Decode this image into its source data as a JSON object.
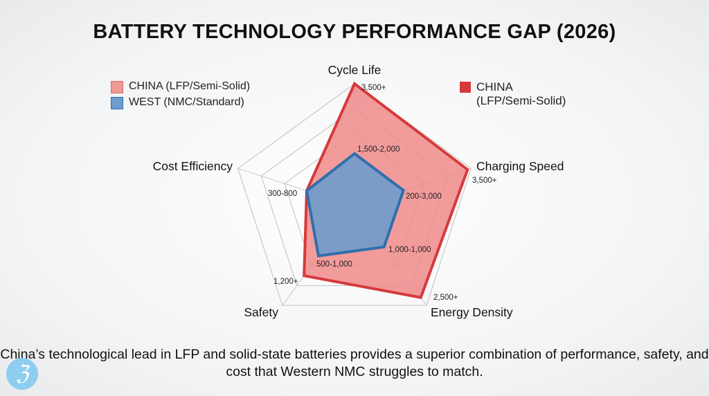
{
  "chart_data": {
    "type": "radar",
    "title": "BATTERY TECHNOLOGY PERFORMANCE GAP (2026)",
    "axes": [
      "Cycle Life",
      "Charging Speed",
      "Energy Density",
      "Safety",
      "Cost Efficiency"
    ],
    "scale_max": 100,
    "rings": 5,
    "series": [
      {
        "name": "CHINA (LFP/Semi-Solid)",
        "color": "#d63a3a",
        "fill": "#f08a8a",
        "values": [
          100,
          97,
          92,
          70,
          41
        ],
        "labels": [
          "3,500+",
          "3,500+",
          "2,500+",
          "1,200+",
          ""
        ]
      },
      {
        "name": "WEST (NMC/Standard)",
        "color": "#2f6fad",
        "fill": "#6e9ccc",
        "values": [
          43,
          42,
          41,
          50,
          41
        ],
        "labels": [
          "1,500-2,000",
          "200-3,000",
          "1,000-1,000",
          "500-1,000",
          "300-800"
        ]
      }
    ],
    "legend_placement": "top-left",
    "legend_right": {
      "name": "CHINA",
      "subname": "(LFP/Semi-Solid)"
    }
  },
  "caption": "China’s technological lead in LFP and solid-state batteries provides a superior combination of performance, safety, and cost that Western NMC struggles to match.",
  "logo_glyph": "ℨ"
}
